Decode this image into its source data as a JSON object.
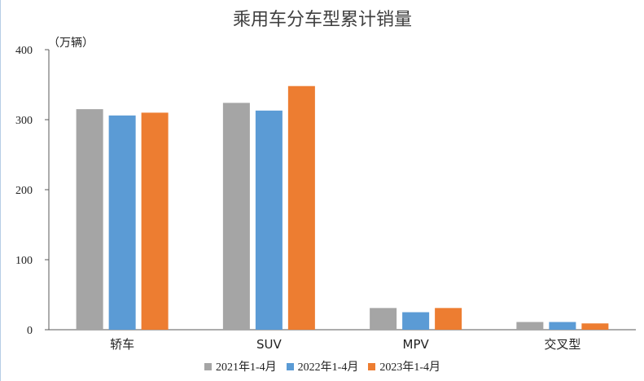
{
  "chart_data": {
    "type": "bar",
    "title": "乘用车分车型累计销量",
    "unit_label": "（万辆）",
    "categories": [
      "轿车",
      "SUV",
      "MPV",
      "交叉型"
    ],
    "series": [
      {
        "name": "2021年1-4月",
        "color": "#a5a5a5",
        "values": [
          315,
          324,
          31,
          11
        ]
      },
      {
        "name": "2022年1-4月",
        "color": "#5b9bd5",
        "values": [
          306,
          313,
          25,
          11
        ]
      },
      {
        "name": "2023年1-4月",
        "color": "#ed7d31",
        "values": [
          310,
          348,
          31,
          9
        ]
      }
    ],
    "ylim": [
      0,
      400
    ],
    "yticks": [
      "0",
      "100",
      "200",
      "300",
      "400"
    ],
    "grid": false,
    "legend_position": "bottom"
  }
}
